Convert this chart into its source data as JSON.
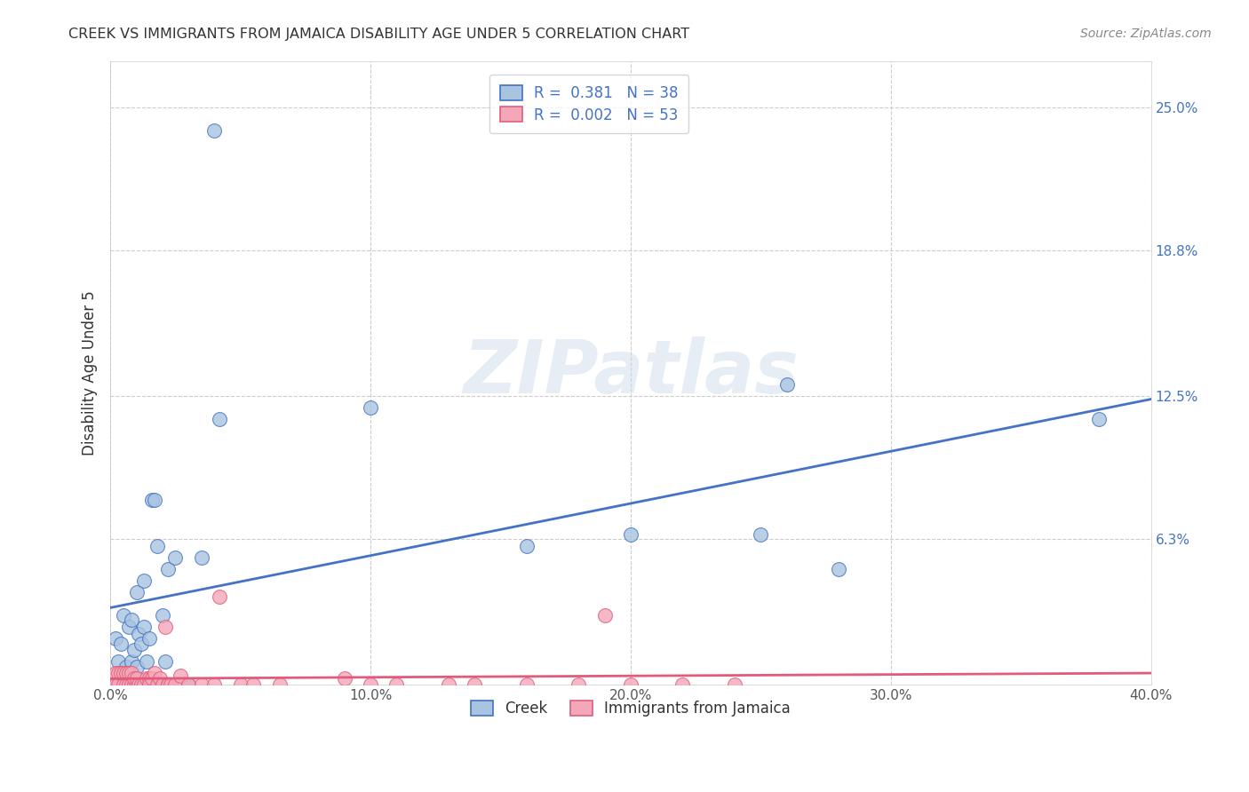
{
  "title": "CREEK VS IMMIGRANTS FROM JAMAICA DISABILITY AGE UNDER 5 CORRELATION CHART",
  "source": "Source: ZipAtlas.com",
  "xlabel_ticks": [
    "0.0%",
    "10.0%",
    "20.0%",
    "30.0%",
    "40.0%"
  ],
  "xlabel_vals": [
    0.0,
    0.1,
    0.2,
    0.3,
    0.4
  ],
  "ylabel": "Disability Age Under 5",
  "ylabel_ticks_labels": [
    "6.3%",
    "12.5%",
    "18.8%",
    "25.0%"
  ],
  "ylabel_ticks_vals": [
    0.063,
    0.125,
    0.188,
    0.25
  ],
  "xlim": [
    0.0,
    0.4
  ],
  "ylim": [
    0.0,
    0.27
  ],
  "legend_label_creek": "Creek",
  "legend_label_jamaica": "Immigrants from Jamaica",
  "creek_R": "0.381",
  "creek_N": "38",
  "jamaica_R": "0.002",
  "jamaica_N": "53",
  "creek_color": "#a8c4e0",
  "creek_line_color": "#4472c4",
  "jamaica_color": "#f4a7b9",
  "jamaica_line_color": "#e05c7a",
  "watermark": "ZIPatlas",
  "background_color": "#ffffff",
  "grid_color": "#cccccc",
  "creek_x": [
    0.002,
    0.003,
    0.004,
    0.005,
    0.005,
    0.006,
    0.007,
    0.007,
    0.008,
    0.008,
    0.009,
    0.01,
    0.01,
    0.011,
    0.012,
    0.013,
    0.013,
    0.014,
    0.015,
    0.016,
    0.017,
    0.018,
    0.019,
    0.02,
    0.021,
    0.022,
    0.025,
    0.03,
    0.035,
    0.04,
    0.042,
    0.1,
    0.16,
    0.2,
    0.25,
    0.26,
    0.28,
    0.38
  ],
  "creek_y": [
    0.02,
    0.01,
    0.018,
    0.005,
    0.03,
    0.008,
    0.025,
    0.005,
    0.028,
    0.01,
    0.015,
    0.04,
    0.008,
    0.022,
    0.018,
    0.045,
    0.025,
    0.01,
    0.02,
    0.08,
    0.08,
    0.06,
    0.0,
    0.03,
    0.01,
    0.05,
    0.055,
    0.0,
    0.055,
    0.24,
    0.115,
    0.12,
    0.06,
    0.065,
    0.065,
    0.13,
    0.05,
    0.115
  ],
  "jamaica_x": [
    0.001,
    0.002,
    0.002,
    0.003,
    0.003,
    0.004,
    0.005,
    0.005,
    0.006,
    0.006,
    0.007,
    0.007,
    0.008,
    0.008,
    0.009,
    0.009,
    0.01,
    0.01,
    0.011,
    0.012,
    0.013,
    0.014,
    0.015,
    0.015,
    0.016,
    0.017,
    0.018,
    0.019,
    0.02,
    0.021,
    0.022,
    0.022,
    0.023,
    0.025,
    0.027,
    0.03,
    0.035,
    0.04,
    0.042,
    0.05,
    0.055,
    0.065,
    0.09,
    0.1,
    0.11,
    0.13,
    0.14,
    0.16,
    0.18,
    0.19,
    0.2,
    0.22,
    0.24
  ],
  "jamaica_y": [
    0.0,
    0.005,
    0.0,
    0.005,
    0.0,
    0.005,
    0.0,
    0.005,
    0.0,
    0.005,
    0.0,
    0.005,
    0.0,
    0.005,
    0.0,
    0.003,
    0.0,
    0.003,
    0.0,
    0.0,
    0.0,
    0.003,
    0.003,
    0.0,
    0.003,
    0.005,
    0.0,
    0.003,
    0.0,
    0.025,
    0.0,
    0.0,
    0.0,
    0.0,
    0.004,
    0.0,
    0.0,
    0.0,
    0.038,
    0.0,
    0.0,
    0.0,
    0.003,
    0.0,
    0.0,
    0.0,
    0.0,
    0.0,
    0.0,
    0.03,
    0.0,
    0.0,
    0.0
  ]
}
